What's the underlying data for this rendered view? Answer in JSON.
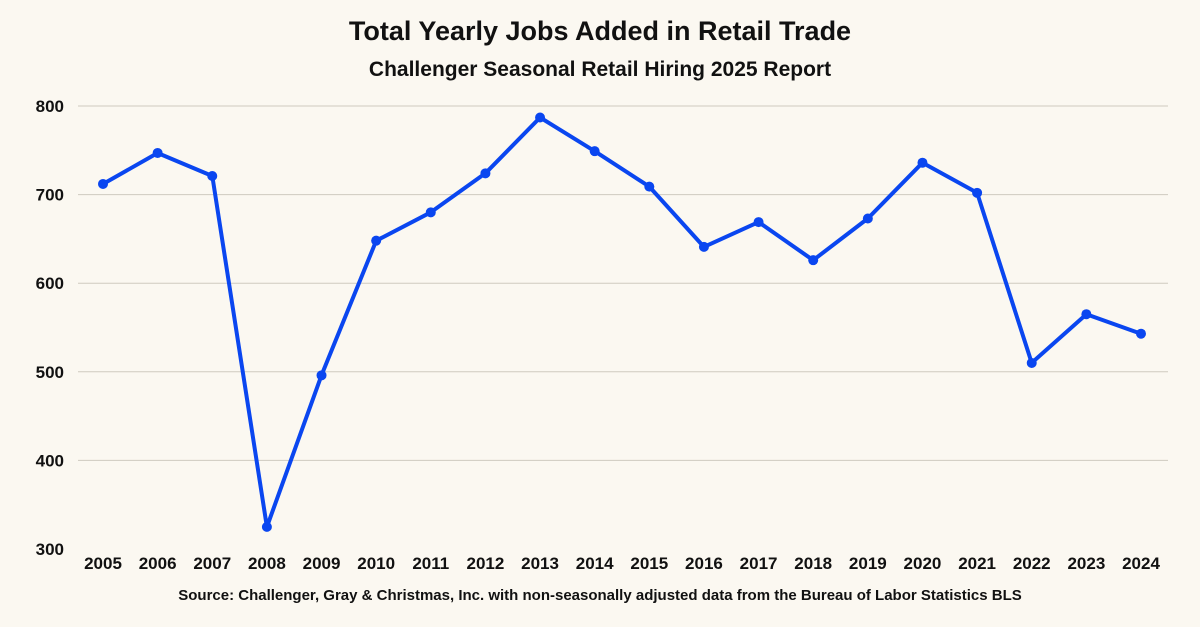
{
  "chart_data": {
    "type": "line",
    "title": "Total Yearly Jobs Added in Retail Trade",
    "subtitle": "Challenger Seasonal Retail Hiring 2025 Report",
    "source": "Source: Challenger, Gray & Christmas, Inc. with non-seasonally adjusted data from the Bureau of Labor Statistics BLS",
    "xlabel": "",
    "ylabel": "",
    "categories": [
      "2005",
      "2006",
      "2007",
      "2008",
      "2009",
      "2010",
      "2011",
      "2012",
      "2013",
      "2014",
      "2015",
      "2016",
      "2017",
      "2018",
      "2019",
      "2020",
      "2021",
      "2022",
      "2023",
      "2024"
    ],
    "series": [
      {
        "values": [
          712,
          747,
          721,
          325,
          496,
          648,
          680,
          724,
          787,
          749,
          709,
          641,
          669,
          626,
          673,
          736,
          702,
          510,
          565,
          543
        ]
      }
    ],
    "ylim": [
      300,
      800
    ],
    "yticks": [
      300,
      400,
      500,
      600,
      700,
      800
    ],
    "grid": true,
    "legend": "none",
    "line_color": "#0a46f0"
  }
}
